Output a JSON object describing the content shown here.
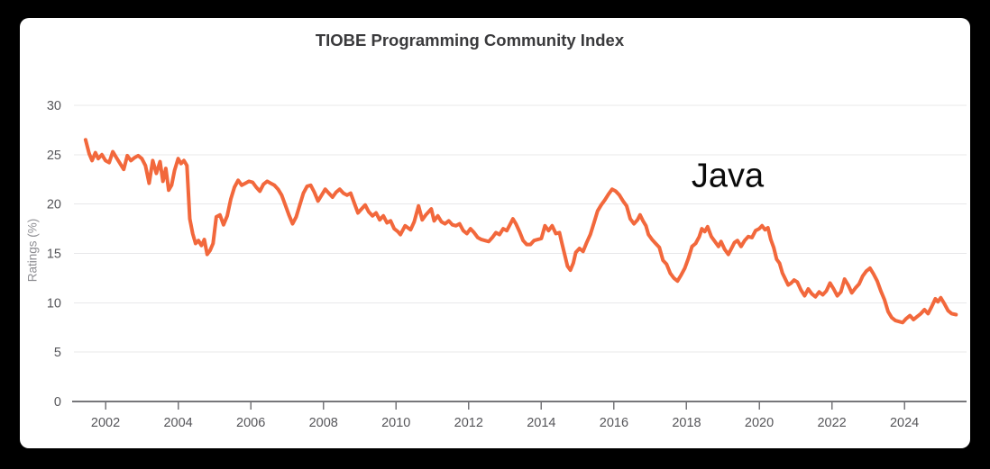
{
  "window": {
    "background": "#000000",
    "card_background": "#ffffff"
  },
  "chart_data": {
    "type": "line",
    "title": "TIOBE Programming Community Index",
    "xlabel": "",
    "ylabel": "Ratings (%)",
    "grid": "horizontal",
    "legend": "none",
    "x_axis": {
      "range": [
        2001.13,
        2025.71
      ],
      "ticks": [
        2002,
        2004,
        2006,
        2008,
        2010,
        2012,
        2014,
        2016,
        2018,
        2020,
        2022,
        2024
      ]
    },
    "y_axis": {
      "range": [
        0,
        31.6
      ],
      "ticks": [
        0,
        5,
        10,
        15,
        20,
        25,
        30
      ]
    },
    "axis_color": "#76767a",
    "gridline_color": "#e8e8ea",
    "annotation": {
      "text": "Java",
      "x": 2019.13,
      "y": 22.8
    },
    "series": [
      {
        "name": "Java",
        "color": "#f2683c",
        "line_width": 4,
        "points": [
          [
            2001.45,
            26.5
          ],
          [
            2001.55,
            25.1
          ],
          [
            2001.63,
            24.4
          ],
          [
            2001.72,
            25.2
          ],
          [
            2001.8,
            24.6
          ],
          [
            2001.9,
            25.0
          ],
          [
            2002.0,
            24.4
          ],
          [
            2002.1,
            24.2
          ],
          [
            2002.2,
            25.3
          ],
          [
            2002.3,
            24.7
          ],
          [
            2002.4,
            24.1
          ],
          [
            2002.5,
            23.5
          ],
          [
            2002.6,
            24.9
          ],
          [
            2002.7,
            24.4
          ],
          [
            2002.8,
            24.7
          ],
          [
            2002.9,
            24.9
          ],
          [
            2003.0,
            24.6
          ],
          [
            2003.1,
            23.9
          ],
          [
            2003.2,
            22.1
          ],
          [
            2003.3,
            24.4
          ],
          [
            2003.4,
            23.1
          ],
          [
            2003.5,
            24.3
          ],
          [
            2003.58,
            22.3
          ],
          [
            2003.66,
            23.6
          ],
          [
            2003.74,
            21.4
          ],
          [
            2003.82,
            21.9
          ],
          [
            2003.9,
            23.4
          ],
          [
            2004.0,
            24.6
          ],
          [
            2004.08,
            24.1
          ],
          [
            2004.16,
            24.4
          ],
          [
            2004.24,
            23.9
          ],
          [
            2004.32,
            18.5
          ],
          [
            2004.4,
            17.0
          ],
          [
            2004.48,
            16.0
          ],
          [
            2004.56,
            16.3
          ],
          [
            2004.64,
            15.8
          ],
          [
            2004.72,
            16.4
          ],
          [
            2004.8,
            14.9
          ],
          [
            2004.88,
            15.3
          ],
          [
            2004.96,
            16.0
          ],
          [
            2005.05,
            18.7
          ],
          [
            2005.15,
            18.9
          ],
          [
            2005.25,
            17.9
          ],
          [
            2005.35,
            18.8
          ],
          [
            2005.45,
            20.5
          ],
          [
            2005.55,
            21.7
          ],
          [
            2005.65,
            22.4
          ],
          [
            2005.75,
            21.9
          ],
          [
            2005.85,
            22.1
          ],
          [
            2005.95,
            22.3
          ],
          [
            2006.05,
            22.2
          ],
          [
            2006.15,
            21.7
          ],
          [
            2006.25,
            21.3
          ],
          [
            2006.35,
            22.0
          ],
          [
            2006.45,
            22.3
          ],
          [
            2006.55,
            22.1
          ],
          [
            2006.65,
            21.9
          ],
          [
            2006.75,
            21.5
          ],
          [
            2006.85,
            20.9
          ],
          [
            2006.95,
            19.9
          ],
          [
            2007.05,
            18.9
          ],
          [
            2007.15,
            18.0
          ],
          [
            2007.25,
            18.7
          ],
          [
            2007.35,
            19.9
          ],
          [
            2007.45,
            21.1
          ],
          [
            2007.55,
            21.8
          ],
          [
            2007.65,
            21.9
          ],
          [
            2007.75,
            21.2
          ],
          [
            2007.85,
            20.3
          ],
          [
            2007.95,
            20.9
          ],
          [
            2008.05,
            21.5
          ],
          [
            2008.15,
            21.1
          ],
          [
            2008.25,
            20.7
          ],
          [
            2008.35,
            21.2
          ],
          [
            2008.45,
            21.5
          ],
          [
            2008.55,
            21.1
          ],
          [
            2008.65,
            20.9
          ],
          [
            2008.75,
            21.1
          ],
          [
            2008.85,
            20.1
          ],
          [
            2008.95,
            19.1
          ],
          [
            2009.05,
            19.5
          ],
          [
            2009.15,
            19.9
          ],
          [
            2009.25,
            19.2
          ],
          [
            2009.35,
            18.8
          ],
          [
            2009.45,
            19.1
          ],
          [
            2009.55,
            18.4
          ],
          [
            2009.65,
            18.8
          ],
          [
            2009.75,
            18.1
          ],
          [
            2009.85,
            18.3
          ],
          [
            2009.95,
            17.5
          ],
          [
            2010.05,
            17.2
          ],
          [
            2010.12,
            16.9
          ],
          [
            2010.25,
            17.8
          ],
          [
            2010.4,
            17.4
          ],
          [
            2010.5,
            18.2
          ],
          [
            2010.62,
            19.8
          ],
          [
            2010.72,
            18.4
          ],
          [
            2010.82,
            18.9
          ],
          [
            2010.97,
            19.5
          ],
          [
            2011.05,
            18.3
          ],
          [
            2011.15,
            18.8
          ],
          [
            2011.25,
            18.2
          ],
          [
            2011.35,
            18.0
          ],
          [
            2011.45,
            18.3
          ],
          [
            2011.55,
            17.9
          ],
          [
            2011.65,
            17.8
          ],
          [
            2011.75,
            18.0
          ],
          [
            2011.85,
            17.3
          ],
          [
            2011.95,
            17.0
          ],
          [
            2012.05,
            17.5
          ],
          [
            2012.15,
            17.1
          ],
          [
            2012.25,
            16.6
          ],
          [
            2012.35,
            16.4
          ],
          [
            2012.45,
            16.3
          ],
          [
            2012.55,
            16.2
          ],
          [
            2012.65,
            16.6
          ],
          [
            2012.75,
            17.1
          ],
          [
            2012.85,
            16.9
          ],
          [
            2012.95,
            17.5
          ],
          [
            2013.05,
            17.3
          ],
          [
            2013.15,
            18.0
          ],
          [
            2013.22,
            18.5
          ],
          [
            2013.3,
            18.0
          ],
          [
            2013.4,
            17.2
          ],
          [
            2013.5,
            16.3
          ],
          [
            2013.6,
            15.9
          ],
          [
            2013.7,
            15.9
          ],
          [
            2013.8,
            16.3
          ],
          [
            2013.9,
            16.4
          ],
          [
            2014.0,
            16.5
          ],
          [
            2014.1,
            17.8
          ],
          [
            2014.2,
            17.3
          ],
          [
            2014.3,
            17.8
          ],
          [
            2014.4,
            17.0
          ],
          [
            2014.5,
            17.1
          ],
          [
            2014.57,
            16.0
          ],
          [
            2014.65,
            14.8
          ],
          [
            2014.72,
            13.7
          ],
          [
            2014.8,
            13.3
          ],
          [
            2014.88,
            14.0
          ],
          [
            2014.95,
            15.1
          ],
          [
            2015.05,
            15.5
          ],
          [
            2015.15,
            15.2
          ],
          [
            2015.25,
            16.1
          ],
          [
            2015.35,
            16.9
          ],
          [
            2015.45,
            18.1
          ],
          [
            2015.55,
            19.3
          ],
          [
            2015.65,
            19.9
          ],
          [
            2015.75,
            20.4
          ],
          [
            2015.85,
            21.0
          ],
          [
            2015.95,
            21.5
          ],
          [
            2016.05,
            21.3
          ],
          [
            2016.15,
            20.9
          ],
          [
            2016.25,
            20.3
          ],
          [
            2016.35,
            19.8
          ],
          [
            2016.45,
            18.5
          ],
          [
            2016.55,
            18.0
          ],
          [
            2016.65,
            18.4
          ],
          [
            2016.72,
            18.9
          ],
          [
            2016.8,
            18.3
          ],
          [
            2016.88,
            17.8
          ],
          [
            2016.95,
            16.9
          ],
          [
            2017.05,
            16.4
          ],
          [
            2017.15,
            16.0
          ],
          [
            2017.25,
            15.6
          ],
          [
            2017.35,
            14.3
          ],
          [
            2017.45,
            13.9
          ],
          [
            2017.55,
            13.0
          ],
          [
            2017.65,
            12.5
          ],
          [
            2017.75,
            12.2
          ],
          [
            2017.85,
            12.8
          ],
          [
            2017.95,
            13.5
          ],
          [
            2018.05,
            14.5
          ],
          [
            2018.15,
            15.7
          ],
          [
            2018.25,
            16.0
          ],
          [
            2018.35,
            16.7
          ],
          [
            2018.42,
            17.5
          ],
          [
            2018.5,
            17.2
          ],
          [
            2018.58,
            17.7
          ],
          [
            2018.68,
            16.7
          ],
          [
            2018.78,
            16.2
          ],
          [
            2018.88,
            15.7
          ],
          [
            2018.95,
            16.2
          ],
          [
            2019.05,
            15.4
          ],
          [
            2019.15,
            14.9
          ],
          [
            2019.25,
            15.6
          ],
          [
            2019.32,
            16.1
          ],
          [
            2019.4,
            16.3
          ],
          [
            2019.5,
            15.7
          ],
          [
            2019.6,
            16.3
          ],
          [
            2019.7,
            16.7
          ],
          [
            2019.8,
            16.6
          ],
          [
            2019.9,
            17.3
          ],
          [
            2020.0,
            17.5
          ],
          [
            2020.08,
            17.8
          ],
          [
            2020.16,
            17.4
          ],
          [
            2020.24,
            17.6
          ],
          [
            2020.32,
            16.4
          ],
          [
            2020.4,
            15.6
          ],
          [
            2020.48,
            14.4
          ],
          [
            2020.56,
            14.0
          ],
          [
            2020.64,
            13.0
          ],
          [
            2020.72,
            12.4
          ],
          [
            2020.8,
            11.8
          ],
          [
            2020.88,
            12.0
          ],
          [
            2020.96,
            12.3
          ],
          [
            2021.05,
            12.1
          ],
          [
            2021.15,
            11.3
          ],
          [
            2021.25,
            10.7
          ],
          [
            2021.35,
            11.4
          ],
          [
            2021.45,
            10.9
          ],
          [
            2021.55,
            10.6
          ],
          [
            2021.65,
            11.1
          ],
          [
            2021.75,
            10.8
          ],
          [
            2021.85,
            11.2
          ],
          [
            2021.95,
            12.0
          ],
          [
            2022.05,
            11.4
          ],
          [
            2022.15,
            10.7
          ],
          [
            2022.25,
            11.1
          ],
          [
            2022.35,
            12.4
          ],
          [
            2022.45,
            11.8
          ],
          [
            2022.55,
            11.0
          ],
          [
            2022.65,
            11.5
          ],
          [
            2022.75,
            11.9
          ],
          [
            2022.85,
            12.7
          ],
          [
            2022.95,
            13.2
          ],
          [
            2023.05,
            13.5
          ],
          [
            2023.15,
            12.9
          ],
          [
            2023.25,
            12.2
          ],
          [
            2023.35,
            11.2
          ],
          [
            2023.45,
            10.3
          ],
          [
            2023.55,
            9.1
          ],
          [
            2023.65,
            8.5
          ],
          [
            2023.75,
            8.2
          ],
          [
            2023.85,
            8.1
          ],
          [
            2023.95,
            8.0
          ],
          [
            2024.05,
            8.4
          ],
          [
            2024.15,
            8.7
          ],
          [
            2024.25,
            8.3
          ],
          [
            2024.35,
            8.6
          ],
          [
            2024.45,
            8.9
          ],
          [
            2024.55,
            9.3
          ],
          [
            2024.65,
            8.9
          ],
          [
            2024.75,
            9.6
          ],
          [
            2024.85,
            10.4
          ],
          [
            2024.92,
            10.1
          ],
          [
            2025.0,
            10.5
          ],
          [
            2025.1,
            9.9
          ],
          [
            2025.2,
            9.2
          ],
          [
            2025.3,
            8.9
          ],
          [
            2025.42,
            8.8
          ]
        ]
      }
    ]
  }
}
